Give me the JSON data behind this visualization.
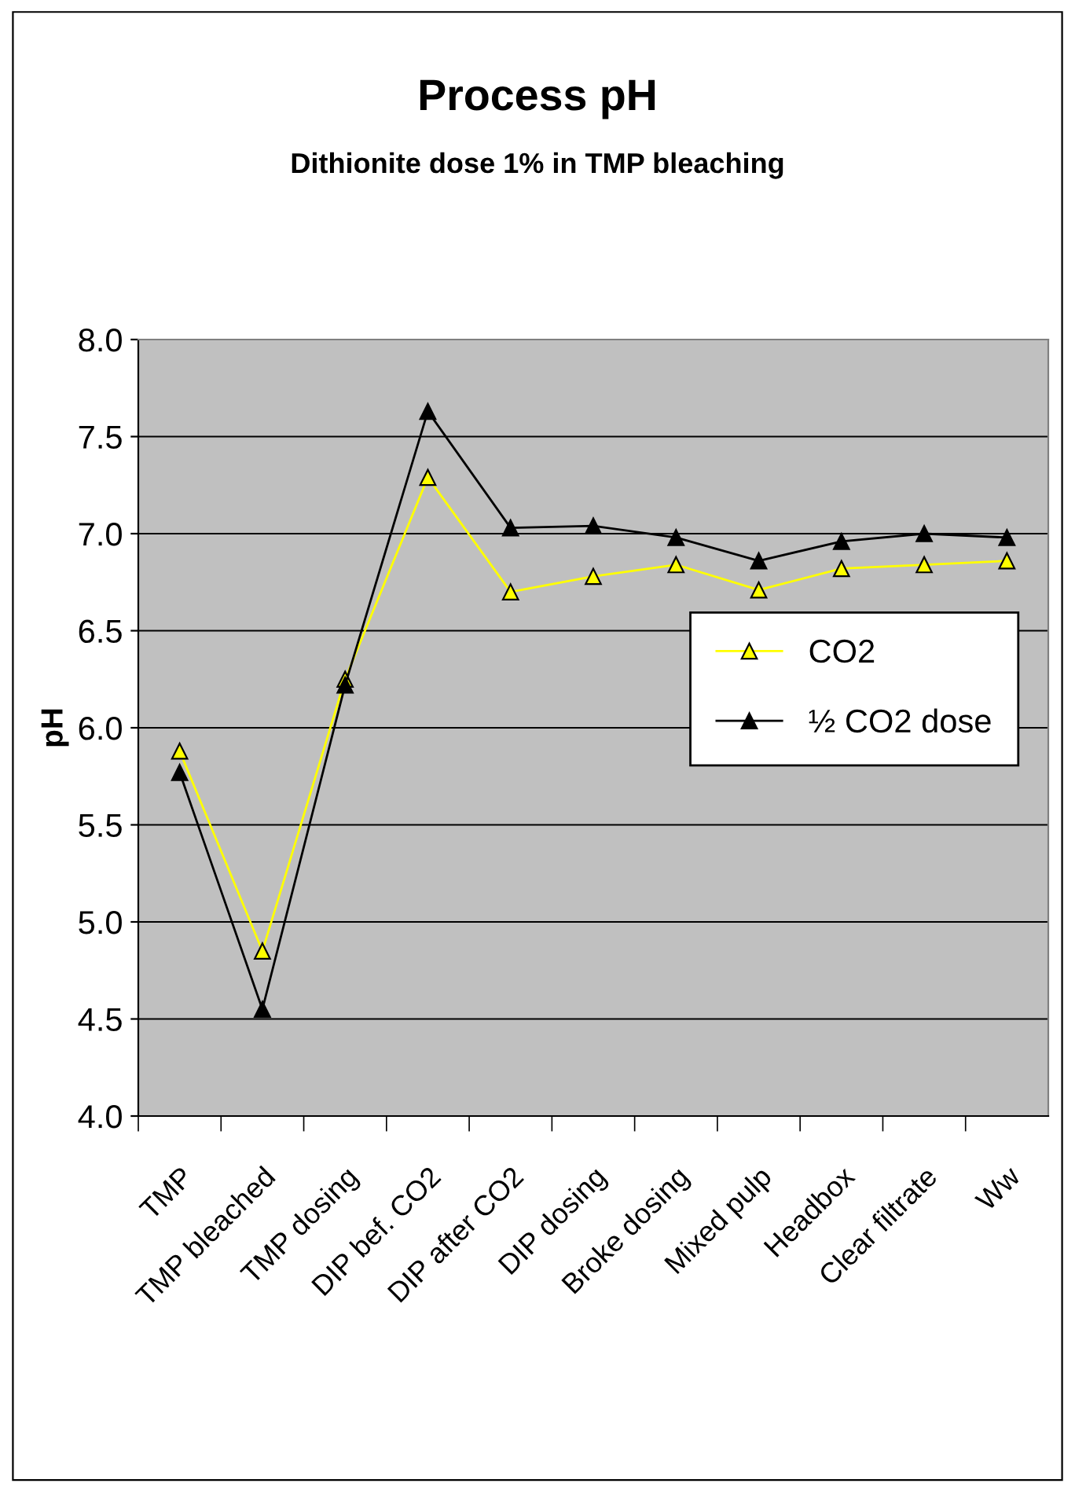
{
  "chart_data": {
    "type": "line",
    "title": "Process pH",
    "subtitle": "Dithionite dose 1% in TMP bleaching",
    "ylabel": "pH",
    "categories": [
      "TMP",
      "TMP bleached",
      "TMP dosing",
      "DIP bef. CO2",
      "DIP after CO2",
      "DIP dosing",
      "Broke dosing",
      "Mixed pulp",
      "Headbox",
      "Clear filtrate",
      "Ww"
    ],
    "series": [
      {
        "name": "CO2",
        "color": "#ffff00",
        "values": [
          5.88,
          4.85,
          6.25,
          7.29,
          6.7,
          6.78,
          6.84,
          6.71,
          6.82,
          6.84,
          6.86
        ]
      },
      {
        "name": "½ CO2 dose",
        "color": "#000000",
        "values": [
          5.77,
          4.55,
          6.22,
          7.63,
          7.03,
          7.04,
          6.98,
          6.86,
          6.96,
          7.0,
          6.98
        ]
      }
    ],
    "ylim": [
      4.0,
      8.0
    ],
    "yticks": [
      {
        "value": 4.0,
        "label": "4.0"
      },
      {
        "value": 4.5,
        "label": "4.5"
      },
      {
        "value": 5.0,
        "label": "5.0"
      },
      {
        "value": 5.5,
        "label": "5.5"
      },
      {
        "value": 6.0,
        "label": "6.0"
      },
      {
        "value": 6.5,
        "label": "6.5"
      },
      {
        "value": 7.0,
        "label": "7.0"
      },
      {
        "value": 7.5,
        "label": "7.5"
      },
      {
        "value": 8.0,
        "label": "8.0"
      }
    ],
    "grid": "y",
    "legend": "right",
    "marker": "triangle",
    "line_style": "solid"
  }
}
